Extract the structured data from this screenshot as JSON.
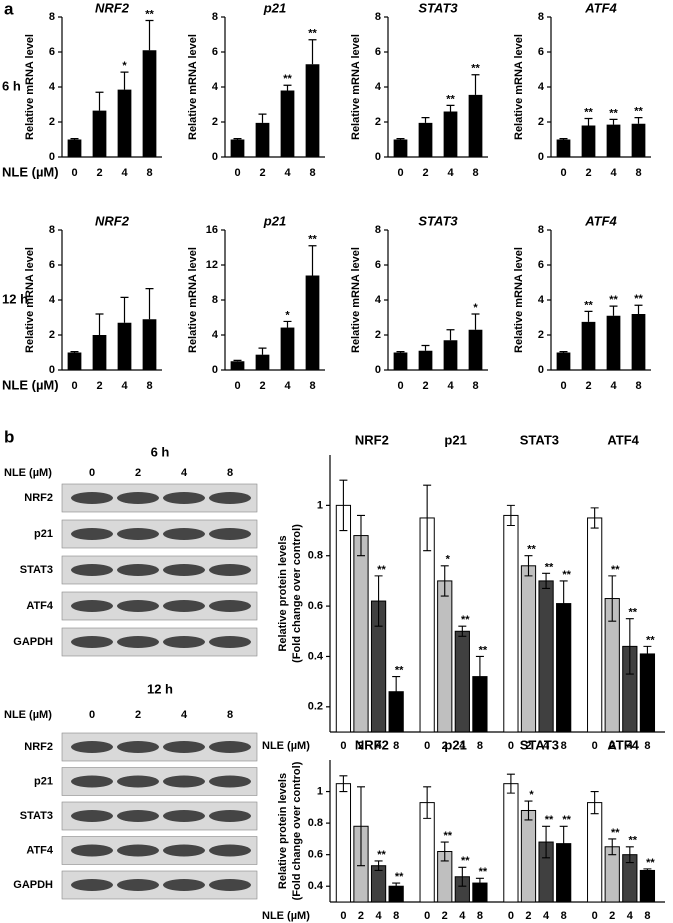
{
  "panel_labels": [
    "a",
    "b"
  ],
  "chart_data": [
    {
      "type": "bar",
      "title": "NRF2",
      "row_label": "6 h",
      "x_label": "NLE (µM)",
      "y_label": "Relative mRNA level",
      "categories": [
        "0",
        "2",
        "4",
        "8"
      ],
      "values": [
        1,
        2.65,
        3.85,
        6.1
      ],
      "errors": [
        0.05,
        1.05,
        1.0,
        1.7
      ],
      "significance": [
        null,
        null,
        "*",
        "**"
      ],
      "color": "#000000",
      "ylim": [
        0,
        8
      ],
      "yticks": [
        0,
        2,
        4,
        6,
        8
      ]
    },
    {
      "type": "bar",
      "title": "p21",
      "y_label": "Relative mRNA level",
      "categories": [
        "0",
        "2",
        "4",
        "8"
      ],
      "values": [
        1,
        1.95,
        3.8,
        5.3
      ],
      "errors": [
        0.05,
        0.5,
        0.3,
        1.4
      ],
      "significance": [
        null,
        null,
        "**",
        "**"
      ],
      "color": "#000000",
      "ylim": [
        0,
        8
      ],
      "yticks": [
        0,
        2,
        4,
        6,
        8
      ]
    },
    {
      "type": "bar",
      "title": "STAT3",
      "y_label": "Relative mRNA level",
      "categories": [
        "0",
        "2",
        "4",
        "8"
      ],
      "values": [
        1,
        1.95,
        2.6,
        3.55
      ],
      "errors": [
        0.05,
        0.3,
        0.35,
        1.15
      ],
      "significance": [
        null,
        null,
        "**",
        "**"
      ],
      "color": "#000000",
      "ylim": [
        0,
        8
      ],
      "yticks": [
        0,
        2,
        4,
        6,
        8
      ]
    },
    {
      "type": "bar",
      "title": "ATF4",
      "y_label": "Relative mRNA level",
      "categories": [
        "0",
        "2",
        "4",
        "8"
      ],
      "values": [
        1,
        1.8,
        1.85,
        1.9
      ],
      "errors": [
        0.05,
        0.4,
        0.3,
        0.35
      ],
      "significance": [
        null,
        "**",
        "**",
        "**"
      ],
      "color": "#000000",
      "ylim": [
        0,
        8
      ],
      "yticks": [
        0,
        2,
        4,
        6,
        8
      ]
    },
    {
      "type": "bar",
      "title": "NRF2",
      "row_label": "12 h",
      "x_label": "NLE (µM)",
      "y_label": "Relative mRNA level",
      "categories": [
        "0",
        "2",
        "4",
        "8"
      ],
      "values": [
        1,
        2.0,
        2.7,
        2.9
      ],
      "errors": [
        0.05,
        1.2,
        1.45,
        1.75
      ],
      "significance": [
        null,
        null,
        null,
        null
      ],
      "color": "#000000",
      "ylim": [
        0,
        8
      ],
      "yticks": [
        0,
        2,
        4,
        6,
        8
      ]
    },
    {
      "type": "bar",
      "title": "p21",
      "y_label": "Relative mRNA level",
      "categories": [
        "0",
        "2",
        "4",
        "8"
      ],
      "values": [
        1,
        1.75,
        4.85,
        10.8
      ],
      "errors": [
        0.1,
        0.75,
        0.7,
        3.4
      ],
      "significance": [
        null,
        null,
        "*",
        "**"
      ],
      "color": "#000000",
      "ylim": [
        0,
        16
      ],
      "yticks": [
        0,
        4,
        8,
        12,
        16
      ]
    },
    {
      "type": "bar",
      "title": "STAT3",
      "y_label": "Relative mRNA level",
      "categories": [
        "0",
        "2",
        "4",
        "8"
      ],
      "values": [
        1,
        1.1,
        1.7,
        2.3
      ],
      "errors": [
        0.05,
        0.3,
        0.6,
        0.9
      ],
      "significance": [
        null,
        null,
        null,
        "*"
      ],
      "color": "#000000",
      "ylim": [
        0,
        8
      ],
      "yticks": [
        0,
        2,
        4,
        6,
        8
      ]
    },
    {
      "type": "bar",
      "title": "ATF4",
      "y_label": "Relative mRNA level",
      "categories": [
        "0",
        "2",
        "4",
        "8"
      ],
      "values": [
        1,
        2.75,
        3.1,
        3.2
      ],
      "errors": [
        0.05,
        0.6,
        0.55,
        0.5
      ],
      "significance": [
        null,
        "**",
        "**",
        "**"
      ],
      "color": "#000000",
      "ylim": [
        0,
        8
      ],
      "yticks": [
        0,
        2,
        4,
        6,
        8
      ]
    },
    {
      "type": "grouped_bar",
      "y_label": [
        "Relative protein levels",
        "(Fold change over control)"
      ],
      "x_label": "NLE (µM)",
      "groups": [
        "NRF2",
        "p21",
        "STAT3",
        "ATF4"
      ],
      "categories": [
        "0",
        "2",
        "4",
        "8"
      ],
      "colors": [
        "#ffffff",
        "#bfbfbf",
        "#404040",
        "#000000"
      ],
      "values": [
        [
          1.0,
          0.88,
          0.62,
          0.26
        ],
        [
          0.95,
          0.7,
          0.5,
          0.32
        ],
        [
          0.96,
          0.76,
          0.7,
          0.61
        ],
        [
          0.95,
          0.63,
          0.44,
          0.41
        ]
      ],
      "errors": [
        [
          0.1,
          0.08,
          0.1,
          0.06
        ],
        [
          0.13,
          0.06,
          0.02,
          0.08
        ],
        [
          0.04,
          0.04,
          0.03,
          0.09
        ],
        [
          0.04,
          0.09,
          0.11,
          0.03
        ]
      ],
      "significance": [
        [
          null,
          null,
          "**",
          "**"
        ],
        [
          null,
          "*",
          "**",
          "**"
        ],
        [
          null,
          "**",
          "**",
          "**"
        ],
        [
          null,
          "**",
          "**",
          "**"
        ]
      ],
      "ylim": [
        0.1,
        1.2
      ],
      "yticks": [
        0.2,
        0.4,
        0.6,
        0.8,
        1
      ]
    },
    {
      "type": "grouped_bar",
      "y_label": [
        "Relative protein levels",
        "(Fold change over control)"
      ],
      "x_label": "NLE (µM)",
      "groups": [
        "NRF2",
        "p21",
        "STAT3",
        "ATF4"
      ],
      "categories": [
        "0",
        "2",
        "4",
        "8"
      ],
      "colors": [
        "#ffffff",
        "#bfbfbf",
        "#404040",
        "#000000"
      ],
      "values": [
        [
          1.05,
          0.78,
          0.53,
          0.4
        ],
        [
          0.93,
          0.62,
          0.46,
          0.42
        ],
        [
          1.05,
          0.88,
          0.68,
          0.67
        ],
        [
          0.93,
          0.65,
          0.6,
          0.5
        ]
      ],
      "errors": [
        [
          0.05,
          0.25,
          0.03,
          0.02
        ],
        [
          0.1,
          0.06,
          0.06,
          0.03
        ],
        [
          0.06,
          0.06,
          0.1,
          0.11
        ],
        [
          0.07,
          0.05,
          0.05,
          0.01
        ]
      ],
      "significance": [
        [
          null,
          null,
          "**",
          "**"
        ],
        [
          null,
          "**",
          "**",
          "**"
        ],
        [
          null,
          "*",
          "**",
          "**"
        ],
        [
          null,
          "**",
          "**",
          "**"
        ]
      ],
      "ylim": [
        0.3,
        1.2
      ],
      "yticks": [
        0.4,
        0.6,
        0.8,
        1
      ]
    }
  ],
  "blots": [
    {
      "title": "6 h",
      "x_label": "NLE (µM)",
      "lanes": [
        "0",
        "2",
        "4",
        "8"
      ],
      "proteins": [
        "NRF2",
        "p21",
        "STAT3",
        "ATF4",
        "GAPDH"
      ]
    },
    {
      "title": "12 h",
      "x_label": "NLE (µM)",
      "lanes": [
        "0",
        "2",
        "4",
        "8"
      ],
      "proteins": [
        "NRF2",
        "p21",
        "STAT3",
        "ATF4",
        "GAPDH"
      ]
    }
  ]
}
